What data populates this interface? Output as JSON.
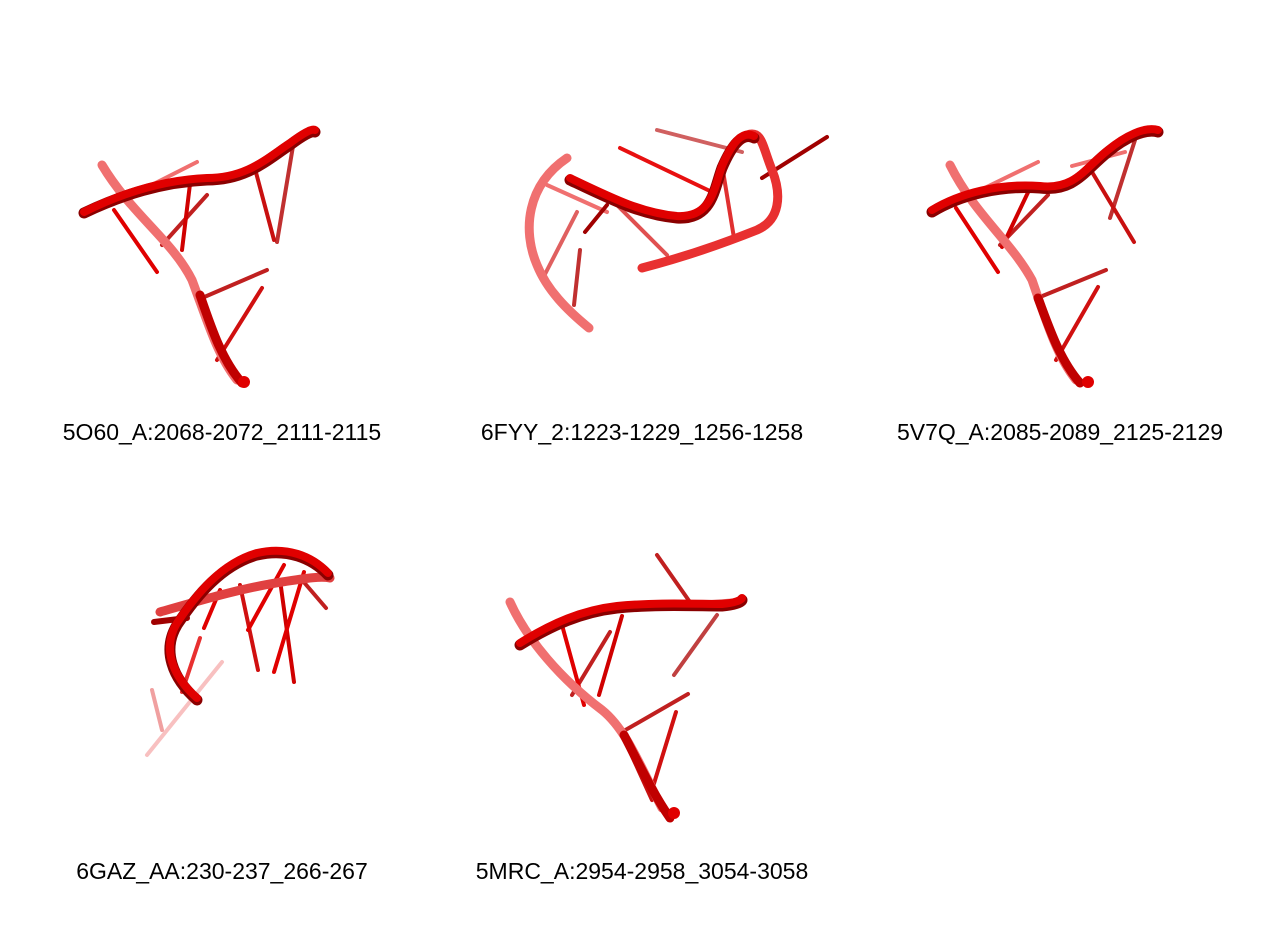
{
  "colors": {
    "backbone": "#e00000",
    "backbone_shadow": "#8a0000",
    "base": "#e81010",
    "base_dark": "#a00000",
    "base_faded": "#f07070",
    "background": "#ffffff"
  },
  "panels": [
    {
      "label": "5O60_A:2068-2072_2111-2115"
    },
    {
      "label": "6FYY_2:1223-1229_1256-1258"
    },
    {
      "label": "5V7Q_A:2085-2089_2125-2129"
    },
    {
      "label": "6GAZ_AA:230-237_266-267"
    },
    {
      "label": "5MRC_A:2954-2958_3054-3058"
    }
  ]
}
